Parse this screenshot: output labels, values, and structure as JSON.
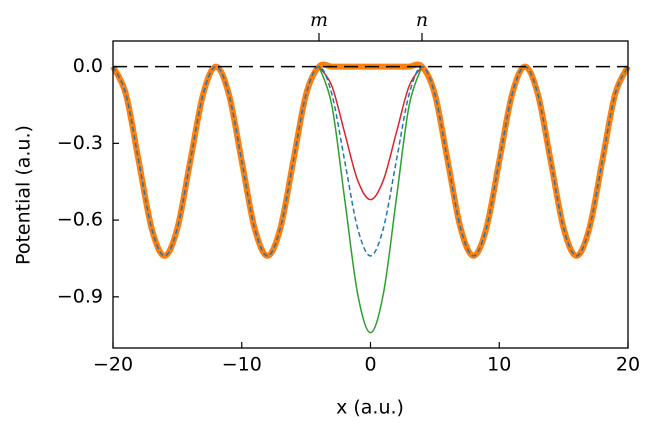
{
  "chart_data": {
    "type": "line",
    "xlabel": "x (a.u.)",
    "ylabel": "Potential (a.u.)",
    "x": [
      -20,
      -19,
      -18,
      -17,
      -16,
      -15,
      -14,
      -13,
      -12,
      -11,
      -10,
      -9,
      -8,
      -7,
      -6,
      -5,
      -4,
      -3,
      -2,
      -1,
      0,
      1,
      2,
      3,
      4,
      5,
      6,
      7,
      8,
      9,
      10,
      11,
      12,
      13,
      14,
      15,
      16,
      17,
      18,
      19,
      20
    ],
    "series": [
      {
        "color": "#ff7f0e",
        "width": 6,
        "dashed": false,
        "values": [
          0,
          -0.108,
          -0.37,
          -0.632,
          -0.74,
          -0.632,
          -0.37,
          -0.108,
          0,
          -0.108,
          -0.37,
          -0.632,
          -0.74,
          -0.632,
          -0.37,
          -0.108,
          0,
          0,
          0,
          0,
          0,
          0,
          0,
          0,
          0,
          -0.108,
          -0.37,
          -0.632,
          -0.74,
          -0.632,
          -0.37,
          -0.108,
          0,
          -0.108,
          -0.37,
          -0.632,
          -0.74,
          -0.632,
          -0.37,
          -0.108,
          0
        ]
      },
      {
        "color": "#d62728",
        "width": 1.5,
        "dashed": false,
        "values": [
          null,
          null,
          null,
          null,
          null,
          null,
          null,
          null,
          null,
          null,
          null,
          null,
          null,
          null,
          null,
          null,
          0,
          -0.076,
          -0.26,
          -0.444,
          -0.52,
          -0.444,
          -0.26,
          -0.076,
          0,
          null,
          null,
          null,
          null,
          null,
          null,
          null,
          null,
          null,
          null,
          null,
          null,
          null,
          null,
          null,
          null
        ]
      },
      {
        "color": "#2ca02c",
        "width": 1.5,
        "dashed": false,
        "values": [
          null,
          null,
          null,
          null,
          null,
          null,
          null,
          null,
          null,
          null,
          null,
          null,
          null,
          null,
          null,
          null,
          0,
          -0.152,
          -0.52,
          -0.888,
          -1.04,
          -0.888,
          -0.52,
          -0.152,
          0,
          null,
          null,
          null,
          null,
          null,
          null,
          null,
          null,
          null,
          null,
          null,
          null,
          null,
          null,
          null,
          null
        ]
      },
      {
        "color": "#1f77b4",
        "width": 1.5,
        "dashed": true,
        "values": [
          0,
          -0.108,
          -0.37,
          -0.632,
          -0.74,
          -0.632,
          -0.37,
          -0.108,
          0,
          -0.108,
          -0.37,
          -0.632,
          -0.74,
          -0.632,
          -0.37,
          -0.108,
          0,
          -0.108,
          -0.37,
          -0.632,
          -0.74,
          -0.632,
          -0.37,
          -0.108,
          0,
          -0.108,
          -0.37,
          -0.632,
          -0.74,
          -0.632,
          -0.37,
          -0.108,
          0,
          -0.108,
          -0.37,
          -0.632,
          -0.74,
          -0.632,
          -0.37,
          -0.108,
          0
        ]
      }
    ],
    "hline": {
      "y": 0,
      "color": "#000000"
    },
    "xlim": [
      -20,
      20
    ],
    "ylim": [
      -1.1,
      0.1
    ],
    "xticks": [
      {
        "value": -20,
        "label": "−20"
      },
      {
        "value": -10,
        "label": "−10"
      },
      0,
      10,
      20
    ],
    "yticks": [
      {
        "value": 0,
        "label": "0.0"
      },
      {
        "value": -0.3,
        "label": "−0.3"
      },
      {
        "value": -0.6,
        "label": "−0.6"
      },
      {
        "value": -0.9,
        "label": "−0.9"
      }
    ],
    "top_ticks": [
      {
        "value": -4,
        "label": "m"
      },
      {
        "value": 4,
        "label": "n"
      }
    ]
  }
}
